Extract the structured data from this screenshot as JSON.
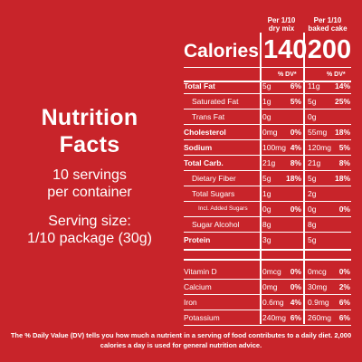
{
  "left": {
    "title_line1": "Nutrition",
    "title_line2": "Facts",
    "servings_line1": "10 servings",
    "servings_line2": "per container",
    "serving_size_line1": "Serving size:",
    "serving_size_line2": "1/10 package (30g)"
  },
  "columns": {
    "col1_line1": "Per 1/10",
    "col1_line2": "dry mix",
    "col2_line1": "Per 1/10",
    "col2_line2": "baked cake"
  },
  "calories": {
    "label": "Calories",
    "col1": "140",
    "col2": "200"
  },
  "dv_header": {
    "col1": "% DV*",
    "col2": "% DV*"
  },
  "rows": [
    {
      "name": "Total Fat",
      "bold": true,
      "indent": 0,
      "a1": "5g",
      "p1": "6%",
      "a2": "11g",
      "p2": "14%"
    },
    {
      "name": "Saturated Fat",
      "bold": false,
      "indent": 1,
      "a1": "1g",
      "p1": "5%",
      "a2": "5g",
      "p2": "25%"
    },
    {
      "name": "Trans Fat",
      "bold": false,
      "indent": 1,
      "a1": "0g",
      "p1": "",
      "a2": "0g",
      "p2": ""
    },
    {
      "name": "Cholesterol",
      "bold": true,
      "indent": 0,
      "a1": "0mg",
      "p1": "0%",
      "a2": "55mg",
      "p2": "18%"
    },
    {
      "name": "Sodium",
      "bold": true,
      "indent": 0,
      "a1": "100mg",
      "p1": "4%",
      "a2": "120mg",
      "p2": "5%"
    },
    {
      "name": "Total Carb.",
      "bold": true,
      "indent": 0,
      "a1": "21g",
      "p1": "8%",
      "a2": "21g",
      "p2": "8%"
    },
    {
      "name": "Dietary Fiber",
      "bold": false,
      "indent": 1,
      "a1": "5g",
      "p1": "18%",
      "a2": "5g",
      "p2": "18%"
    },
    {
      "name": "Total Sugars",
      "bold": false,
      "indent": 1,
      "a1": "1g",
      "p1": "",
      "a2": "2g",
      "p2": ""
    },
    {
      "name": "Incl. Added Sugars",
      "bold": false,
      "indent": 2,
      "a1": "0g",
      "p1": "0%",
      "a2": "0g",
      "p2": "0%"
    },
    {
      "name": "Sugar Alcohol",
      "bold": false,
      "indent": 1,
      "a1": "8g",
      "p1": "",
      "a2": "8g",
      "p2": ""
    },
    {
      "name": "Protein",
      "bold": true,
      "indent": 0,
      "a1": "3g",
      "p1": "",
      "a2": "5g",
      "p2": ""
    },
    {
      "name": "Vitamin D",
      "bold": false,
      "indent": 0,
      "a1": "0mcg",
      "p1": "0%",
      "a2": "0mcg",
      "p2": "0%"
    },
    {
      "name": "Calcium",
      "bold": false,
      "indent": 0,
      "a1": "0mg",
      "p1": "0%",
      "a2": "30mg",
      "p2": "2%"
    },
    {
      "name": "Iron",
      "bold": false,
      "indent": 0,
      "a1": "0.6mg",
      "p1": "4%",
      "a2": "0.9mg",
      "p2": "6%"
    },
    {
      "name": "Potassium",
      "bold": false,
      "indent": 0,
      "a1": "240mg",
      "p1": "6%",
      "a2": "260mg",
      "p2": "6%"
    }
  ],
  "footnote": "The % Daily Value (DV) tells you how much a nutrient in a serving of food contributes to a daily diet. 2,000 calories a day is used for general nutrition advice.",
  "colors": {
    "background": "#c8242a",
    "text": "#ffffff"
  }
}
